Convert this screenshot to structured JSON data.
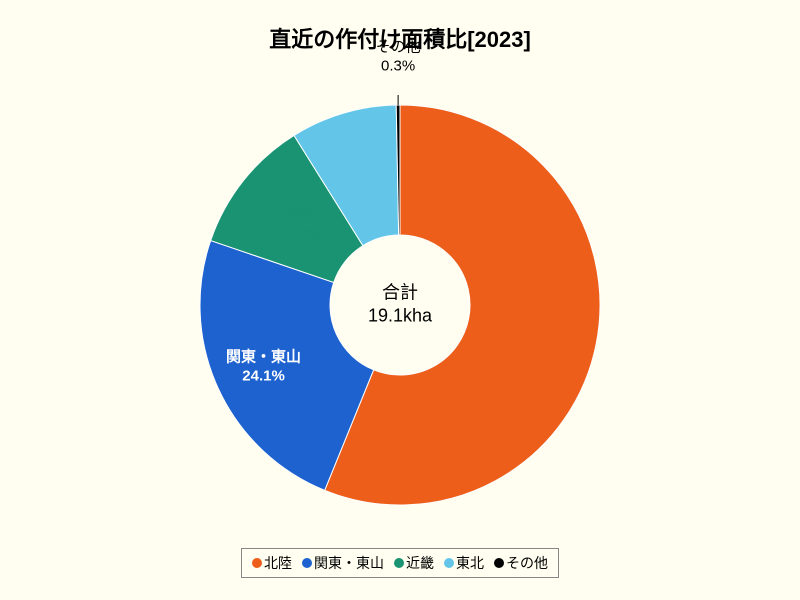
{
  "chart": {
    "type": "pie",
    "title": "直近の作付け面積比[2023]",
    "background_color": "#fffef0",
    "title_fontsize": 22,
    "label_fontsize": 15,
    "inner_radius_ratio": 0.35,
    "outer_radius": 200,
    "center_label_top": "合計",
    "center_label_bottom": "19.1kha",
    "slices": [
      {
        "key": "hokuriku",
        "label": "北陸",
        "value": 56.2,
        "color": "#ed5e1b",
        "text_color": "#ed5e1b"
      },
      {
        "key": "kanto",
        "label": "関東・東山",
        "value": 24.1,
        "color": "#1d62cf",
        "text_color": "#ffffff"
      },
      {
        "key": "kinki",
        "label": "近畿",
        "value": 10.9,
        "color": "#199371",
        "text_color": "#199371"
      },
      {
        "key": "tohoku",
        "label": "東北",
        "value": 8.6,
        "color": "#63c6e9",
        "text_color": "#63c6e9"
      },
      {
        "key": "other",
        "label": "その他",
        "value": 0.3,
        "color": "#000000",
        "text_color": "#000000"
      }
    ],
    "legend_border_color": "#888888"
  }
}
